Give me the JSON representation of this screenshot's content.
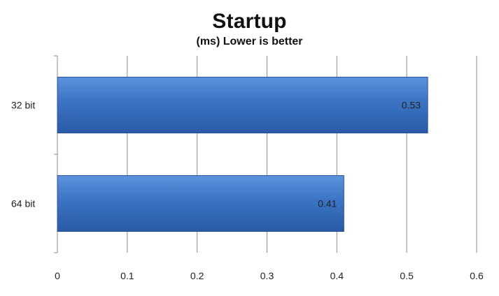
{
  "chart_data": {
    "type": "bar",
    "orientation": "horizontal",
    "title": "Startup",
    "subtitle": "(ms) Lower is better",
    "categories": [
      "32 bit",
      "64 bit"
    ],
    "values": [
      0.53,
      0.41
    ],
    "data_labels": [
      "0.53",
      "0.41"
    ],
    "xlim": [
      0,
      0.6
    ],
    "x_ticks": [
      "0",
      "0.1",
      "0.2",
      "0.3",
      "0.4",
      "0.5",
      "0.6"
    ],
    "grid": "vertical",
    "legend": "none",
    "bar_color": "#3b74c4"
  }
}
